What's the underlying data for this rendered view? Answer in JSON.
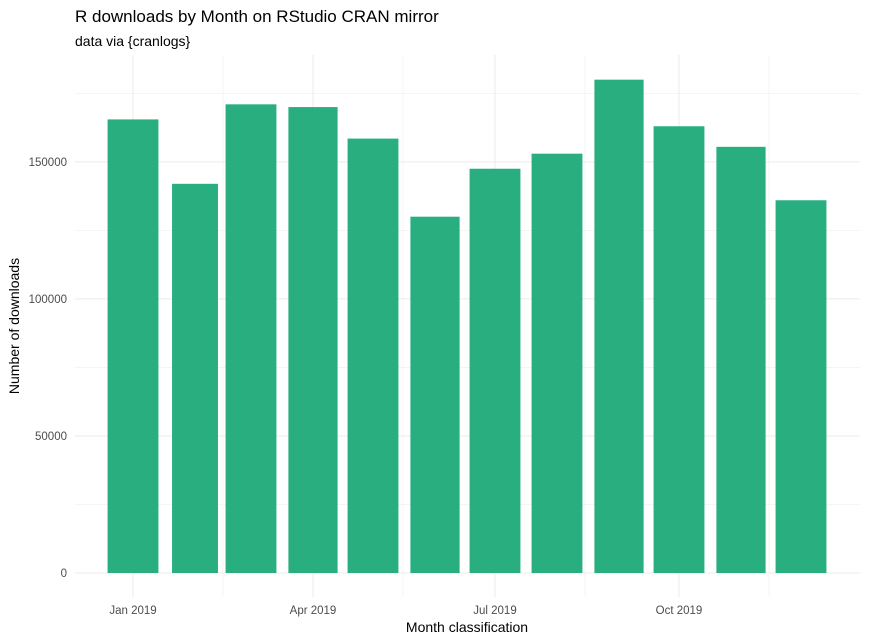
{
  "chart_data": {
    "type": "bar",
    "title": "R downloads by Month on RStudio CRAN mirror",
    "subtitle": "data via {cranlogs}",
    "xlabel": "Month classification",
    "ylabel": "Number of downloads",
    "categories": [
      "2019-01",
      "2019-02",
      "2019-03",
      "2019-04",
      "2019-05",
      "2019-06",
      "2019-07",
      "2019-08",
      "2019-09",
      "2019-10",
      "2019-11",
      "2019-12"
    ],
    "values": [
      165500,
      142000,
      171000,
      170000,
      158500,
      130000,
      147500,
      153000,
      180000,
      163000,
      155500,
      136000
    ],
    "x_ticks": [
      {
        "date": "2019-01",
        "label": "Jan 2019"
      },
      {
        "date": "2019-04",
        "label": "Apr 2019"
      },
      {
        "date": "2019-07",
        "label": "Jul 2019"
      },
      {
        "date": "2019-10",
        "label": "Oct 2019"
      }
    ],
    "y_ticks": [
      {
        "value": 0,
        "label": "0"
      },
      {
        "value": 50000,
        "label": "50000"
      },
      {
        "value": 100000,
        "label": "100000"
      },
      {
        "value": 150000,
        "label": "150000"
      }
    ],
    "ylim": [
      0,
      189000
    ],
    "bar_color": "#29AE80",
    "grid": true,
    "legend": "none"
  }
}
